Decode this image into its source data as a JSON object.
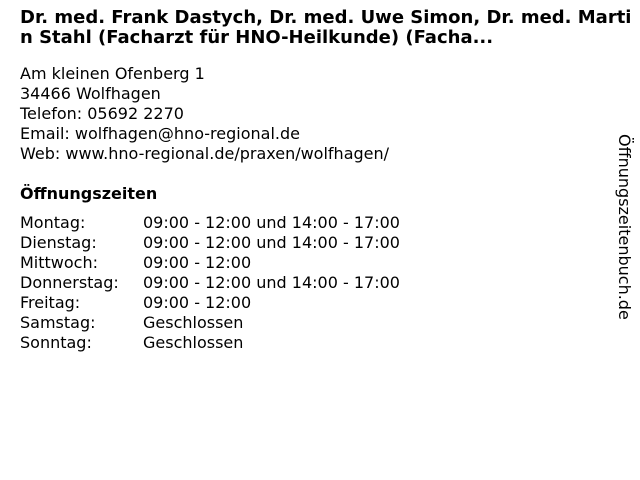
{
  "title": "Dr. med. Frank Dastych, Dr. med. Uwe Simon, Dr. med. Martin Stahl (Facharzt für HNO-Heilkunde) (Facha...",
  "address": {
    "street": "Am kleinen Ofenberg 1",
    "city": "34466 Wolfhagen",
    "phone": "Telefon: 05692 2270",
    "email": "Email: wolfhagen@hno-regional.de",
    "web": "Web: www.hno-regional.de/praxen/wolfhagen/"
  },
  "opening_hours": {
    "heading": "Öffnungszeiten",
    "rows": [
      {
        "day": "Montag:",
        "hours": "09:00 - 12:00 und 14:00 - 17:00"
      },
      {
        "day": "Dienstag:",
        "hours": "09:00 - 12:00 und 14:00 - 17:00"
      },
      {
        "day": "Mittwoch:",
        "hours": "09:00 - 12:00"
      },
      {
        "day": "Donnerstag:",
        "hours": "09:00 - 12:00 und 14:00 - 17:00"
      },
      {
        "day": "Freitag:",
        "hours": "09:00 - 12:00"
      },
      {
        "day": "Samstag:",
        "hours": "Geschlossen"
      },
      {
        "day": "Sonntag:",
        "hours": "Geschlossen"
      }
    ]
  },
  "side_label": "Öffnungszeitenbuch.de"
}
